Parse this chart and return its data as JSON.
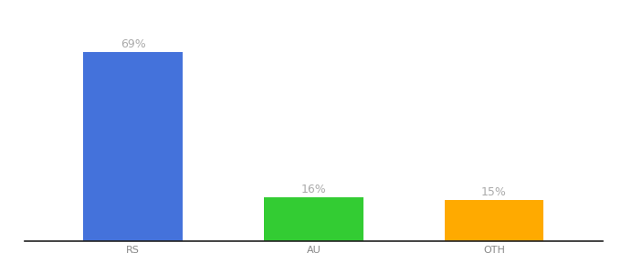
{
  "categories": [
    "RS",
    "AU",
    "OTH"
  ],
  "values": [
    69,
    16,
    15
  ],
  "bar_colors": [
    "#4472db",
    "#33cc33",
    "#ffaa00"
  ],
  "label_texts": [
    "69%",
    "16%",
    "15%"
  ],
  "label_color": "#aaaaaa",
  "label_fontsize": 9,
  "tick_fontsize": 8,
  "tick_color": "#888888",
  "background_color": "#ffffff",
  "ylim": [
    0,
    80
  ],
  "bar_width": 0.55
}
